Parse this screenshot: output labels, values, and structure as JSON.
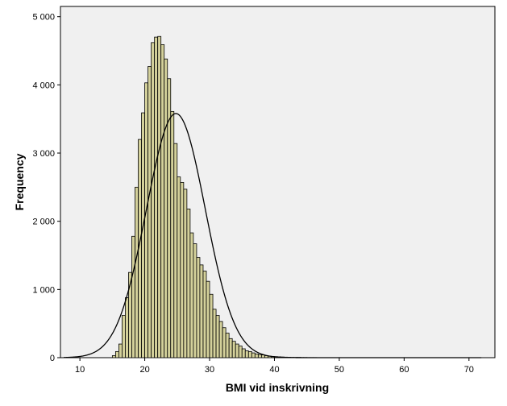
{
  "chart_data": {
    "type": "bar",
    "subtype": "histogram",
    "xlabel": "BMI vid inskrivning",
    "ylabel": "Frequency",
    "xlim": [
      7,
      74
    ],
    "ylim": [
      0,
      5150
    ],
    "x_ticks": [
      10,
      20,
      30,
      40,
      50,
      60,
      70
    ],
    "x_tick_labels": [
      "10",
      "20",
      "30",
      "40",
      "50",
      "60",
      "70"
    ],
    "y_ticks": [
      0,
      1000,
      2000,
      3000,
      4000,
      5000
    ],
    "y_tick_labels": [
      "0",
      "1 000",
      "2 000",
      "3 000",
      "4 000",
      "5 000"
    ],
    "bin_width": 0.5,
    "bin_starts": [
      15.0,
      15.5,
      16.0,
      16.5,
      17.0,
      17.5,
      18.0,
      18.5,
      19.0,
      19.5,
      20.0,
      20.5,
      21.0,
      21.5,
      22.0,
      22.5,
      23.0,
      23.5,
      24.0,
      24.5,
      25.0,
      25.5,
      26.0,
      26.5,
      27.0,
      27.5,
      28.0,
      28.5,
      29.0,
      29.5,
      30.0,
      30.5,
      31.0,
      31.5,
      32.0,
      32.5,
      33.0,
      33.5,
      34.0,
      34.5,
      35.0,
      35.5,
      36.0,
      36.5,
      37.0,
      37.5,
      38.0,
      38.5,
      39.0,
      39.5,
      40.0,
      40.5,
      41.0,
      41.5,
      42.0,
      42.5,
      43.0,
      43.5,
      44.0,
      44.5,
      45.0,
      45.5,
      46.0,
      46.5,
      47.0,
      47.5,
      48.0,
      48.5,
      49.0,
      49.5
    ],
    "values": [
      30,
      90,
      200,
      620,
      880,
      1250,
      1780,
      2500,
      3200,
      3590,
      4030,
      4270,
      4620,
      4700,
      4710,
      4590,
      4380,
      4090,
      3610,
      3140,
      2650,
      2570,
      2470,
      2180,
      1830,
      1670,
      1470,
      1360,
      1270,
      1120,
      930,
      710,
      620,
      530,
      440,
      360,
      280,
      240,
      200,
      170,
      130,
      100,
      90,
      70,
      55,
      45,
      40,
      30,
      22,
      18,
      15,
      12,
      10,
      8,
      6,
      5,
      4,
      4,
      3,
      3,
      2,
      2,
      2,
      1,
      1,
      1,
      1,
      1,
      1,
      1
    ],
    "normal_curve": {
      "mean": 24.8,
      "sd": 4.55,
      "peak": 3580,
      "x_range": [
        7.5,
        72
      ]
    },
    "bar_color": "#d4d19b",
    "bar_edge_color": "#000000",
    "plot_background": "#f0f0f0",
    "grid": false
  }
}
